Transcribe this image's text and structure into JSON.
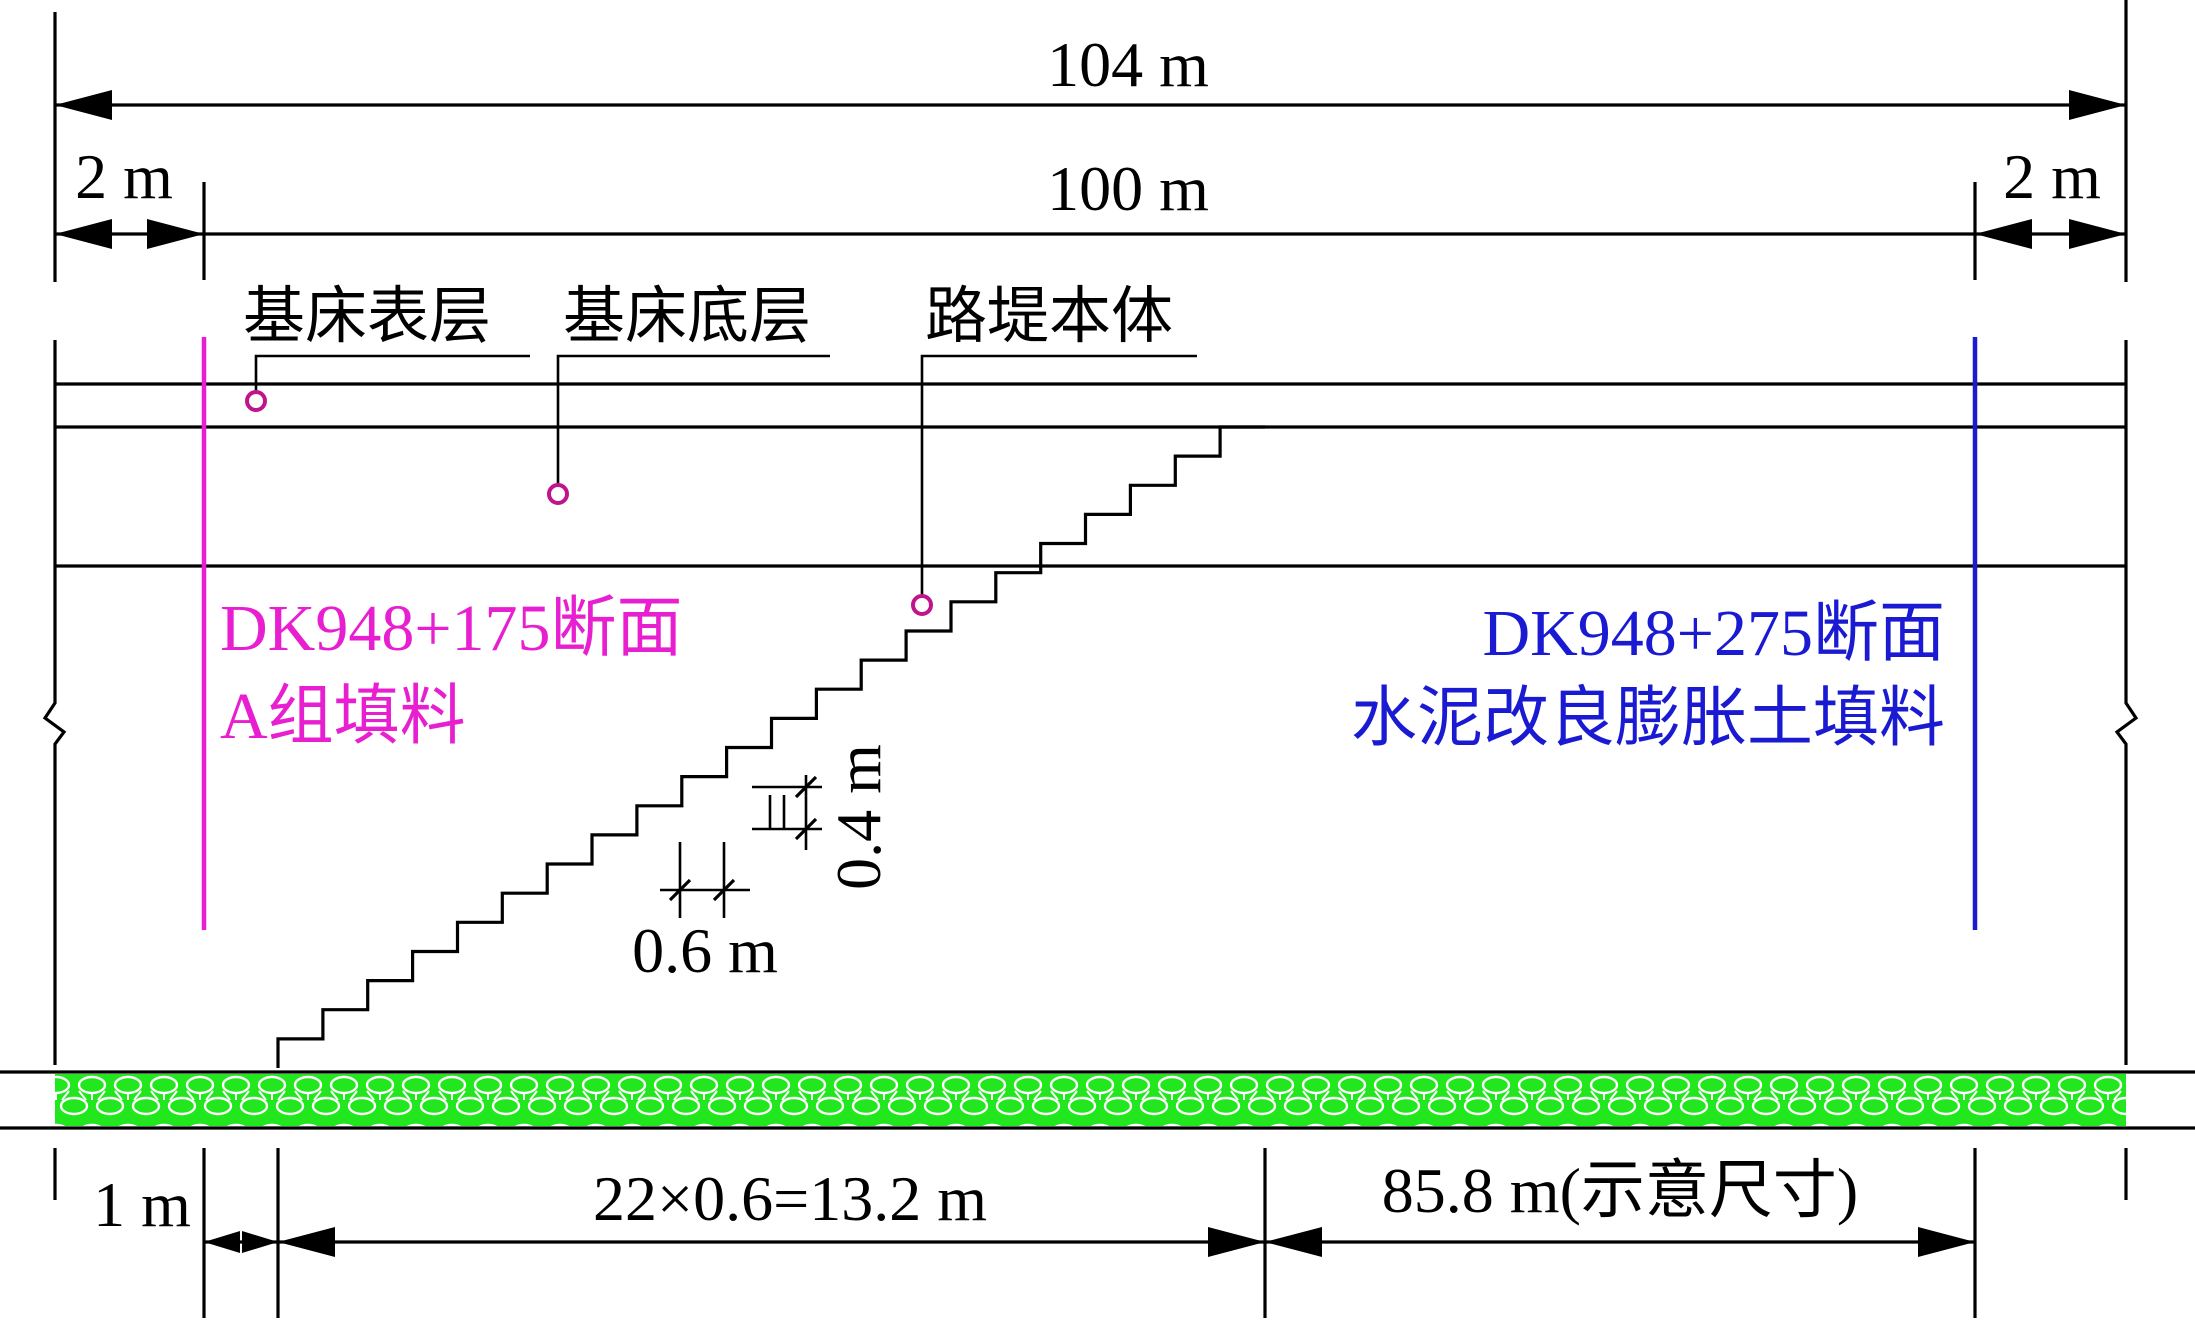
{
  "dimensions": {
    "total_width": "104 m",
    "slope_width": "100 m",
    "left_margin": "2 m",
    "right_margin": "2 m",
    "bottom_left": "1 m",
    "bottom_steps": "22×0.6=13.2 m",
    "bottom_right": "85.8 m(示意尺寸)",
    "step_width": "0.6 m",
    "step_height": "0.4 m"
  },
  "layers": {
    "surface_layer": "基床表层",
    "bottom_layer": "基床底层",
    "embankment_body": "路堤本体"
  },
  "sections": {
    "left": {
      "station": "DK948+175断面",
      "fill": "A组填料",
      "color": "#e81fd0"
    },
    "right": {
      "station": "DK948+275断面",
      "fill": "水泥改良膨胀土填料",
      "color": "#1a1ad2"
    }
  },
  "steps": {
    "count": 22,
    "step_width_m": 0.6,
    "step_height_m": 0.4
  },
  "colors": {
    "foundation_fill": "#22e61e",
    "leader_dot": "#c0148c"
  }
}
